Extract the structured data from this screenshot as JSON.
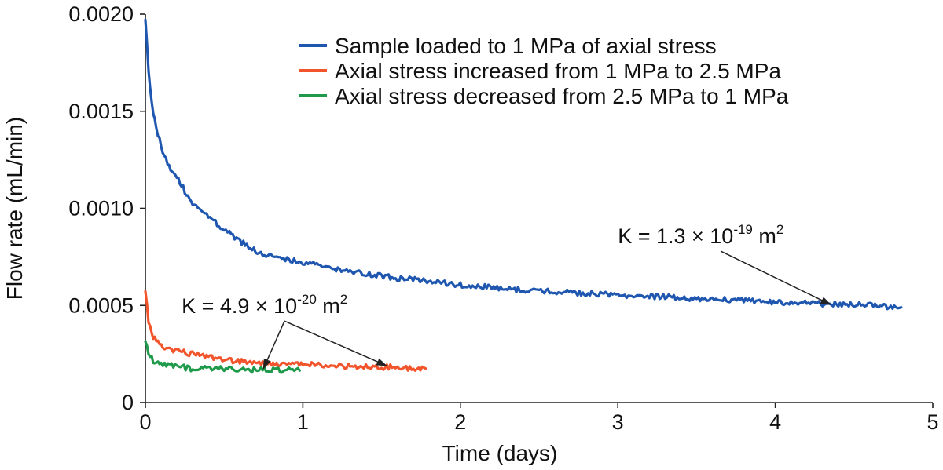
{
  "chart_data": {
    "type": "line",
    "xlabel": "Time (days)",
    "ylabel": "Flow rate (mL/min)",
    "xlim": [
      0,
      5
    ],
    "ylim": [
      0,
      0.002
    ],
    "x_ticks": [
      {
        "value": 0,
        "label": "0"
      },
      {
        "value": 1,
        "label": "1"
      },
      {
        "value": 2,
        "label": "2"
      },
      {
        "value": 3,
        "label": "3"
      },
      {
        "value": 4,
        "label": "4"
      },
      {
        "value": 5,
        "label": "5"
      }
    ],
    "y_ticks": [
      {
        "value": 0,
        "label": "0"
      },
      {
        "value": 0.0005,
        "label": "0.0005"
      },
      {
        "value": 0.001,
        "label": "0.0010"
      },
      {
        "value": 0.0015,
        "label": "0.0015"
      },
      {
        "value": 0.002,
        "label": "0.0020"
      }
    ],
    "grid": false,
    "legend_position": "top-right",
    "series": [
      {
        "name": "Sample loaded to 1 MPa of axial stress",
        "color": "#1f57b0",
        "x": [
          0,
          0.02,
          0.05,
          0.1,
          0.15,
          0.2,
          0.25,
          0.3,
          0.4,
          0.5,
          0.6,
          0.7,
          0.8,
          0.9,
          1.0,
          1.2,
          1.4,
          1.6,
          1.8,
          2.0,
          2.3,
          2.6,
          3.0,
          3.4,
          3.8,
          4.2,
          4.5,
          4.8
        ],
        "y": [
          0.00198,
          0.0017,
          0.00148,
          0.00132,
          0.00122,
          0.00116,
          0.00109,
          0.00102,
          0.00096,
          0.00089,
          0.00083,
          0.00078,
          0.000755,
          0.00074,
          0.00072,
          0.00069,
          0.000665,
          0.00064,
          0.000625,
          0.000605,
          0.000585,
          0.00057,
          0.000555,
          0.00054,
          0.000525,
          0.00051,
          0.000505,
          0.00049
        ]
      },
      {
        "name": "Axial stress increased from 1 MPa to 2.5 MPa",
        "color": "#f2552c",
        "x": [
          0,
          0.02,
          0.05,
          0.1,
          0.2,
          0.3,
          0.4,
          0.5,
          0.6,
          0.8,
          1.0,
          1.2,
          1.4,
          1.6,
          1.78
        ],
        "y": [
          0.00058,
          0.00042,
          0.00034,
          0.00029,
          0.000265,
          0.00025,
          0.000235,
          0.000225,
          0.00021,
          0.0002,
          0.000195,
          0.00019,
          0.000185,
          0.00018,
          0.000175
        ]
      },
      {
        "name": "Axial stress decreased from 2.5 MPa to 1 MPa",
        "color": "#1e9a4a",
        "x": [
          0,
          0.02,
          0.05,
          0.1,
          0.2,
          0.3,
          0.4,
          0.5,
          0.6,
          0.7,
          0.8,
          0.9,
          0.98
        ],
        "y": [
          0.00032,
          0.00026,
          0.000215,
          0.000195,
          0.000185,
          0.000175,
          0.00018,
          0.000175,
          0.00017,
          0.000168,
          0.000165,
          0.000168,
          0.000165
        ]
      }
    ],
    "annotations": [
      {
        "text": "K = 1.3 × 10",
        "superscript": "-19",
        "suffix": " m",
        "suffix_superscript": "2",
        "label_at": {
          "x": 3.0,
          "y": 0.00082
        },
        "arrows_to": [
          {
            "x": 4.35,
            "y": 0.000505
          }
        ]
      },
      {
        "text": "K = 4.9 × 10",
        "superscript": "-20",
        "suffix": " m",
        "suffix_superscript": "2",
        "label_at": {
          "x": 0.23,
          "y": 0.00046
        },
        "arrows_to": [
          {
            "x": 0.75,
            "y": 0.000175
          },
          {
            "x": 1.53,
            "y": 0.00019
          }
        ]
      }
    ]
  }
}
